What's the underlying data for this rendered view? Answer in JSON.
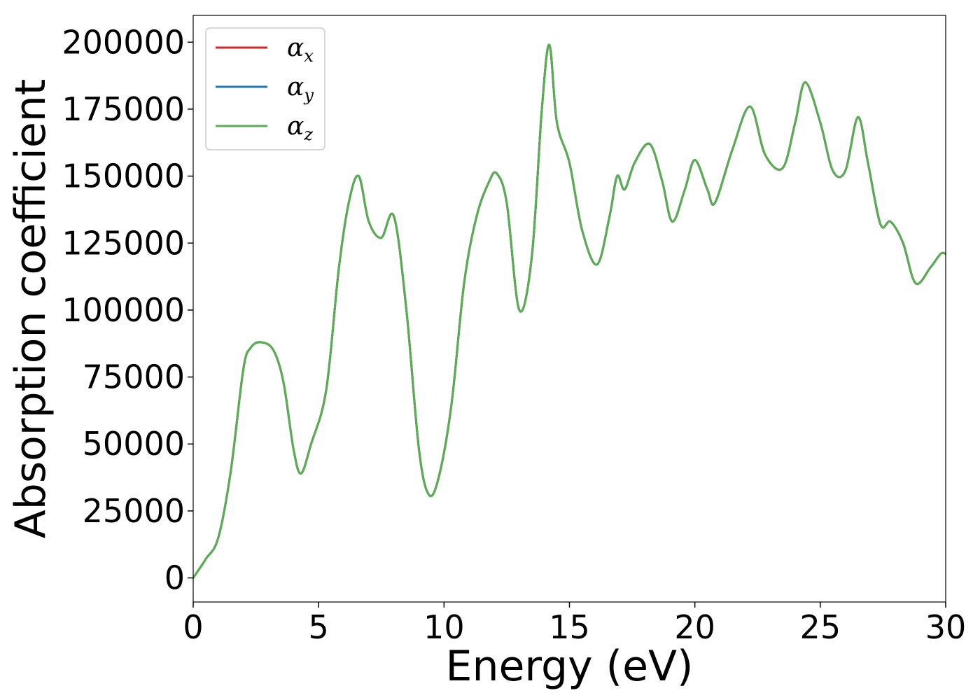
{
  "chart_data": {
    "type": "line",
    "xlabel": "Energy (eV)",
    "ylabel": "Absorption coefficient",
    "xlim": [
      0,
      30
    ],
    "ylim": [
      -9000,
      210000
    ],
    "xticks": [
      0,
      5,
      10,
      15,
      20,
      25,
      30
    ],
    "xtick_labels": [
      "0",
      "5",
      "10",
      "15",
      "20",
      "25",
      "30"
    ],
    "yticks": [
      0,
      25000,
      50000,
      75000,
      100000,
      125000,
      150000,
      175000,
      200000
    ],
    "ytick_labels": [
      "0",
      "25000",
      "50000",
      "75000",
      "100000",
      "125000",
      "150000",
      "175000",
      "200000"
    ],
    "grid": false,
    "legend_position": "top-left",
    "x": [
      0,
      0.5,
      1,
      1.5,
      2,
      2.3,
      2.7,
      3.2,
      3.6,
      4,
      4.3,
      4.7,
      5.3,
      5.8,
      6.2,
      6.6,
      7,
      7.5,
      8,
      8.5,
      9,
      9.4,
      9.8,
      10.3,
      10.8,
      11.3,
      11.8,
      12.1,
      12.5,
      13,
      13.5,
      13.9,
      14.2,
      14.5,
      15,
      15.5,
      16.1,
      16.6,
      16.9,
      17.2,
      17.6,
      18.2,
      18.7,
      19.1,
      19.6,
      20,
      20.5,
      20.8,
      21.5,
      22.2,
      22.8,
      23.5,
      24,
      24.4,
      25,
      25.5,
      26,
      26.5,
      26.9,
      27.4,
      27.8,
      28.3,
      28.8,
      29.4,
      29.8,
      30
    ],
    "series": [
      {
        "name": "α_x",
        "color": "#d62728",
        "values": [
          0,
          7000,
          15000,
          40000,
          78000,
          86000,
          88000,
          85000,
          73000,
          48000,
          39000,
          50000,
          70000,
          115000,
          140000,
          150000,
          133000,
          127000,
          135000,
          100000,
          48000,
          31000,
          38000,
          65000,
          110000,
          135000,
          148000,
          151000,
          140000,
          100000,
          120000,
          175000,
          199000,
          170000,
          155000,
          130000,
          117000,
          135000,
          150000,
          145000,
          155000,
          162000,
          148000,
          133000,
          145000,
          156000,
          145000,
          140000,
          160000,
          176000,
          158000,
          153000,
          170000,
          185000,
          170000,
          152000,
          152000,
          172000,
          155000,
          132000,
          133000,
          125000,
          110000,
          116000,
          121000,
          121000
        ]
      },
      {
        "name": "α_y",
        "color": "#1f77b4",
        "values": [
          0,
          7000,
          15000,
          40000,
          78000,
          86000,
          88000,
          85000,
          73000,
          48000,
          39000,
          50000,
          70000,
          115000,
          140000,
          150000,
          133000,
          127000,
          135000,
          100000,
          48000,
          31000,
          38000,
          65000,
          110000,
          135000,
          148000,
          151000,
          140000,
          100000,
          120000,
          175000,
          199000,
          170000,
          155000,
          130000,
          117000,
          135000,
          150000,
          145000,
          155000,
          162000,
          148000,
          133000,
          145000,
          156000,
          145000,
          140000,
          160000,
          176000,
          158000,
          153000,
          170000,
          185000,
          170000,
          152000,
          152000,
          172000,
          155000,
          132000,
          133000,
          125000,
          110000,
          116000,
          121000,
          121000
        ]
      },
      {
        "name": "α_z",
        "color": "#5aad50",
        "values": [
          0,
          7000,
          15000,
          40000,
          78000,
          86000,
          88000,
          85000,
          73000,
          48000,
          39000,
          50000,
          70000,
          115000,
          140000,
          150000,
          133000,
          127000,
          135000,
          100000,
          48000,
          31000,
          38000,
          65000,
          110000,
          135000,
          148000,
          151000,
          140000,
          100000,
          120000,
          175000,
          199000,
          170000,
          155000,
          130000,
          117000,
          135000,
          150000,
          145000,
          155000,
          162000,
          148000,
          133000,
          145000,
          156000,
          145000,
          140000,
          160000,
          176000,
          158000,
          153000,
          170000,
          185000,
          170000,
          152000,
          152000,
          172000,
          155000,
          132000,
          133000,
          125000,
          110000,
          116000,
          121000,
          121000
        ]
      }
    ],
    "legend": [
      {
        "symbol": "α",
        "sub": "x",
        "color": "#d62728"
      },
      {
        "symbol": "α",
        "sub": "y",
        "color": "#1f77b4"
      },
      {
        "symbol": "α",
        "sub": "z",
        "color": "#5aad50"
      }
    ]
  }
}
